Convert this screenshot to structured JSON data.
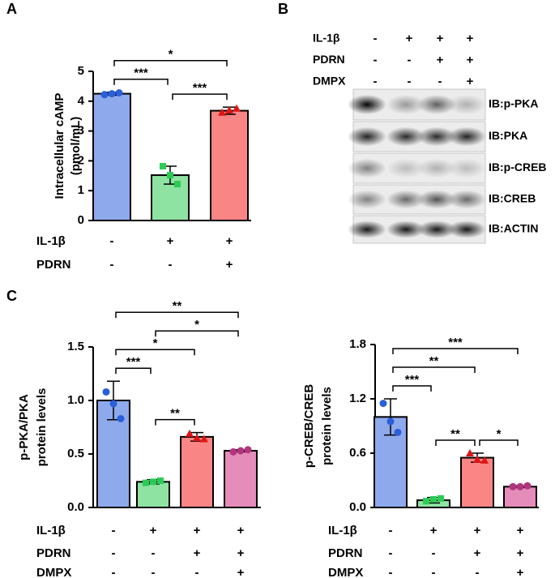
{
  "chart_data": [
    {
      "type": "bar",
      "panel": "A",
      "ylabel": [
        "Intracellular cAMP",
        "(pmol/mL)"
      ],
      "values": [
        4.25,
        1.52,
        3.68
      ],
      "errors": [
        0.05,
        0.3,
        0.12
      ],
      "points": [
        [
          4.22,
          4.25,
          4.28
        ],
        [
          1.82,
          1.52,
          1.22
        ],
        [
          3.62,
          3.7,
          3.76
        ]
      ],
      "colors": [
        "#8ea9ec",
        "#8fe3a2",
        "#f98585"
      ],
      "point_colors": [
        "#2a5fd8",
        "#2ccb55",
        "#e01414"
      ],
      "markers": [
        "circle",
        "square",
        "triangle"
      ],
      "ylim": [
        0,
        5
      ],
      "yticks": [
        0,
        1,
        2,
        3,
        4,
        5
      ],
      "conditions": [
        {
          "name": "IL-1β",
          "signs": [
            "-",
            "+",
            "+"
          ]
        },
        {
          "name": "PDRN",
          "signs": [
            "-",
            "-",
            "+"
          ]
        }
      ],
      "significance": [
        {
          "from": 0,
          "to": 1,
          "label": "***"
        },
        {
          "from": 1,
          "to": 2,
          "label": "***"
        },
        {
          "from": 0,
          "to": 2,
          "label": "*"
        }
      ]
    },
    {
      "type": "bar",
      "panel": "C",
      "ylabel": [
        "p-PKA/PKA",
        "protein levels"
      ],
      "values": [
        1.0,
        0.24,
        0.66,
        0.53
      ],
      "errors": [
        0.18,
        0.02,
        0.04,
        0.01
      ],
      "points": [
        [
          1.08,
          0.97,
          0.83
        ],
        [
          0.23,
          0.24,
          0.25
        ],
        [
          0.69,
          0.65,
          0.64
        ],
        [
          0.52,
          0.53,
          0.54
        ]
      ],
      "colors": [
        "#8ea9ec",
        "#8fe3a2",
        "#f98585",
        "#e58cba"
      ],
      "point_colors": [
        "#2a5fd8",
        "#2ccb55",
        "#e01414",
        "#b0357e"
      ],
      "markers": [
        "circle",
        "square",
        "triangle",
        "circle"
      ],
      "ylim": [
        0,
        1.5
      ],
      "yticks": [
        {
          "value": 0,
          "label": "0.0"
        },
        0.5,
        {
          "value": 1,
          "label": "1.0"
        },
        1.5
      ],
      "conditions": [
        {
          "name": "IL-1β",
          "signs": [
            "-",
            "+",
            "+",
            "+"
          ]
        },
        {
          "name": "PDRN",
          "signs": [
            "-",
            "-",
            "+",
            "+"
          ]
        },
        {
          "name": "DMPX",
          "signs": [
            "-",
            "-",
            "-",
            "+"
          ]
        }
      ],
      "significance": [
        {
          "from": 0,
          "to": 1,
          "label": "***"
        },
        {
          "from": 1,
          "to": 2,
          "label": "**"
        },
        {
          "from": 0,
          "to": 2,
          "label": "*"
        },
        {
          "from": 1,
          "to": 3,
          "label": "*"
        },
        {
          "from": 0,
          "to": 3,
          "label": "**"
        }
      ]
    },
    {
      "type": "bar",
      "ylabel": [
        "p-CREB/CREB",
        "protein levels"
      ],
      "values": [
        1.0,
        0.08,
        0.55,
        0.23
      ],
      "errors": [
        0.2,
        0.03,
        0.05,
        0.01
      ],
      "points": [
        [
          1.15,
          0.95,
          0.83
        ],
        [
          0.07,
          0.09,
          0.1
        ],
        [
          0.6,
          0.53,
          0.52
        ],
        [
          0.23,
          0.23,
          0.24
        ]
      ],
      "colors": [
        "#8ea9ec",
        "#8fe3a2",
        "#f98585",
        "#e58cba"
      ],
      "point_colors": [
        "#2a5fd8",
        "#2ccb55",
        "#e01414",
        "#b0357e"
      ],
      "markers": [
        "circle",
        "square",
        "triangle",
        "circle"
      ],
      "ylim": [
        0,
        1.8
      ],
      "yticks": [
        {
          "value": 0,
          "label": "0.0"
        },
        0.6,
        1.2,
        1.8
      ],
      "conditions": [
        {
          "name": "IL-1β",
          "signs": [
            "-",
            "+",
            "+",
            "+"
          ]
        },
        {
          "name": "PDRN",
          "signs": [
            "-",
            "-",
            "+",
            "+"
          ]
        },
        {
          "name": "DMPX",
          "signs": [
            "-",
            "-",
            "-",
            "+"
          ]
        }
      ],
      "significance": [
        {
          "from": 0,
          "to": 1,
          "label": "***"
        },
        {
          "from": 1,
          "to": 2,
          "label": "**"
        },
        {
          "from": 2,
          "to": 3,
          "label": "*"
        },
        {
          "from": 0,
          "to": 2,
          "label": "**"
        },
        {
          "from": 0,
          "to": 3,
          "label": "***"
        }
      ]
    }
  ],
  "blot": {
    "panel": "B",
    "conditions": [
      {
        "name": "IL-1β",
        "signs": [
          "-",
          "+",
          "+",
          "+"
        ]
      },
      {
        "name": "PDRN",
        "signs": [
          "-",
          "-",
          "+",
          "+"
        ]
      },
      {
        "name": "DMPX",
        "signs": [
          "-",
          "-",
          "-",
          "+"
        ]
      }
    ],
    "bands": [
      "IB:p-PKA",
      "IB:PKA",
      "IB:p-CREB",
      "IB:CREB",
      "IB:ACTIN"
    ]
  }
}
